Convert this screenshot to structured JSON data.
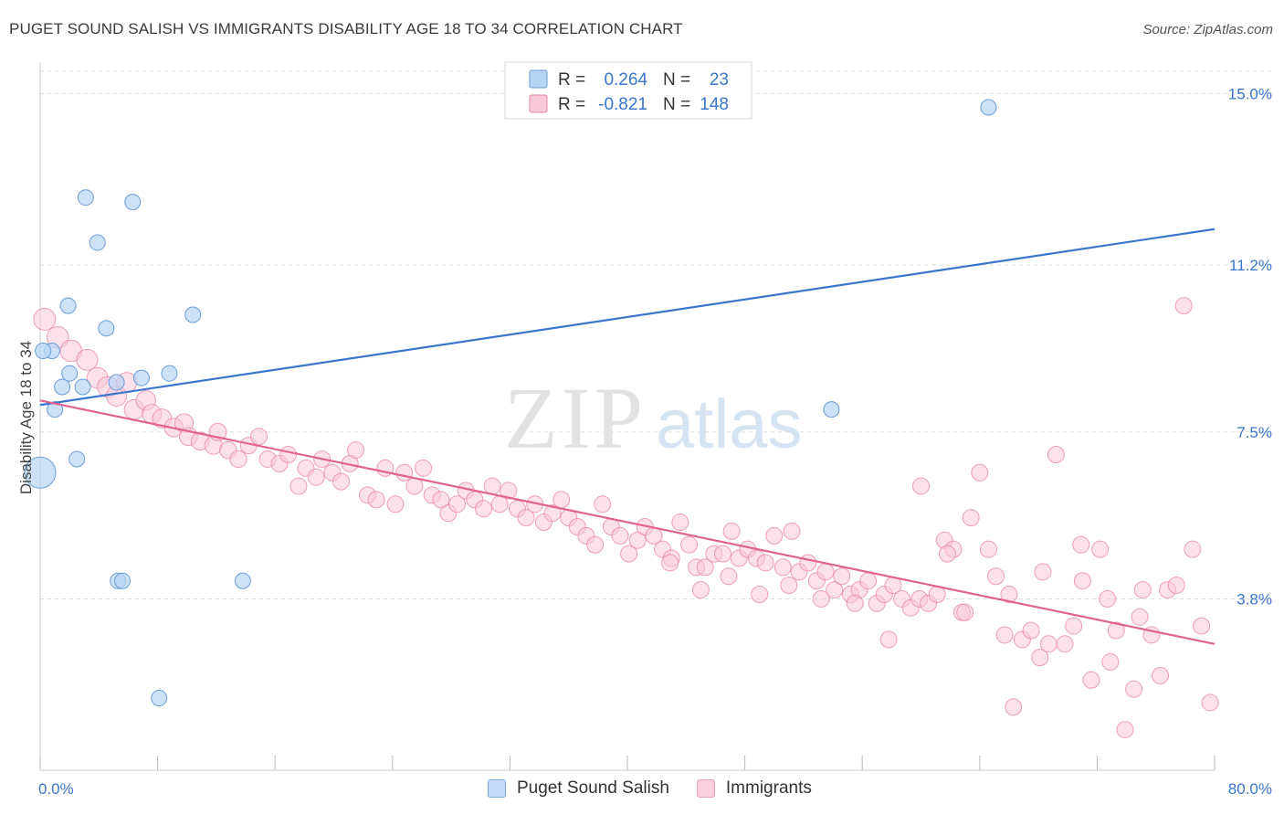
{
  "header": {
    "title": "PUGET SOUND SALISH VS IMMIGRANTS DISABILITY AGE 18 TO 34 CORRELATION CHART",
    "source": "Source: ZipAtlas.com"
  },
  "watermark": {
    "zip": "ZIP",
    "atlas": "atlas"
  },
  "legend_top": {
    "r_label": "R =",
    "n_label": "N =",
    "rows": [
      {
        "r": "0.264",
        "n": "23",
        "fill": "#b8d4f4",
        "stroke": "#6b9ed8"
      },
      {
        "r": "-0.821",
        "n": "148",
        "fill": "#f9c8d8",
        "stroke": "#e888a8"
      }
    ]
  },
  "legend_bottom": [
    {
      "label": "Puget Sound Salish",
      "fill": "#c6dcf6",
      "stroke": "#7aa8e0"
    },
    {
      "label": "Immigrants",
      "fill": "#fbd0de",
      "stroke": "#ee9cb8"
    }
  ],
  "colors": {
    "blue": "#3a76cc",
    "pink": "#e0638f",
    "axis_text": "#3a76cc",
    "grid": "#dddddd"
  },
  "chart_data": {
    "type": "scatter",
    "title": "PUGET SOUND SALISH VS IMMIGRANTS DISABILITY AGE 18 TO 34 CORRELATION CHART",
    "xlabel": "",
    "ylabel": "Disability Age 18 to 34",
    "xlim": [
      0,
      80
    ],
    "ylim": [
      0,
      15.5
    ],
    "x_tick_labels": [
      "0.0%",
      "80.0%"
    ],
    "y_ticks": [
      3.8,
      7.5,
      11.2,
      15.0
    ],
    "y_tick_labels": [
      "3.8%",
      "7.5%",
      "11.2%",
      "15.0%"
    ],
    "grid": true,
    "legend_position": "top-center",
    "series": [
      {
        "name": "Puget Sound Salish",
        "color": "#6b9ed8",
        "trend": {
          "x": [
            0,
            80
          ],
          "y": [
            8.1,
            12.0
          ]
        },
        "points": [
          [
            0.0,
            6.6
          ],
          [
            0.8,
            9.3
          ],
          [
            1.0,
            8.0
          ],
          [
            1.5,
            8.5
          ],
          [
            2.0,
            8.8
          ],
          [
            1.9,
            10.3
          ],
          [
            2.5,
            6.9
          ],
          [
            2.9,
            8.5
          ],
          [
            3.1,
            12.7
          ],
          [
            3.9,
            11.7
          ],
          [
            4.5,
            9.8
          ],
          [
            5.2,
            8.6
          ],
          [
            5.3,
            4.2
          ],
          [
            5.6,
            4.2
          ],
          [
            6.3,
            12.6
          ],
          [
            6.9,
            8.7
          ],
          [
            8.1,
            1.6
          ],
          [
            8.8,
            8.8
          ],
          [
            10.4,
            10.1
          ],
          [
            13.8,
            4.2
          ],
          [
            53.9,
            8.0
          ],
          [
            64.6,
            14.7
          ],
          [
            0.2,
            9.3
          ]
        ]
      },
      {
        "name": "Immigrants",
        "color": "#e888a8",
        "trend": {
          "x": [
            0,
            80
          ],
          "y": [
            8.2,
            2.8
          ]
        },
        "points": [
          [
            0.3,
            10.0
          ],
          [
            1.2,
            9.6
          ],
          [
            2.1,
            9.3
          ],
          [
            3.2,
            9.1
          ],
          [
            3.9,
            8.7
          ],
          [
            4.6,
            8.5
          ],
          [
            5.2,
            8.3
          ],
          [
            5.9,
            8.6
          ],
          [
            6.4,
            8.0
          ],
          [
            7.2,
            8.2
          ],
          [
            7.6,
            7.9
          ],
          [
            8.3,
            7.8
          ],
          [
            9.1,
            7.6
          ],
          [
            9.8,
            7.7
          ],
          [
            10.1,
            7.4
          ],
          [
            10.9,
            7.3
          ],
          [
            11.8,
            7.2
          ],
          [
            12.1,
            7.5
          ],
          [
            12.8,
            7.1
          ],
          [
            13.5,
            6.9
          ],
          [
            14.2,
            7.2
          ],
          [
            14.9,
            7.4
          ],
          [
            15.5,
            6.9
          ],
          [
            16.3,
            6.8
          ],
          [
            16.9,
            7.0
          ],
          [
            17.6,
            6.3
          ],
          [
            18.1,
            6.7
          ],
          [
            18.8,
            6.5
          ],
          [
            19.2,
            6.9
          ],
          [
            19.9,
            6.6
          ],
          [
            20.5,
            6.4
          ],
          [
            21.1,
            6.8
          ],
          [
            21.5,
            7.1
          ],
          [
            22.3,
            6.1
          ],
          [
            22.9,
            6.0
          ],
          [
            23.5,
            6.7
          ],
          [
            24.2,
            5.9
          ],
          [
            24.8,
            6.6
          ],
          [
            25.5,
            6.3
          ],
          [
            26.1,
            6.7
          ],
          [
            26.7,
            6.1
          ],
          [
            27.3,
            6.0
          ],
          [
            27.8,
            5.7
          ],
          [
            28.4,
            5.9
          ],
          [
            29.0,
            6.2
          ],
          [
            29.6,
            6.0
          ],
          [
            30.2,
            5.8
          ],
          [
            30.8,
            6.3
          ],
          [
            31.3,
            5.9
          ],
          [
            31.9,
            6.2
          ],
          [
            32.5,
            5.8
          ],
          [
            33.1,
            5.6
          ],
          [
            33.7,
            5.9
          ],
          [
            34.3,
            5.5
          ],
          [
            34.9,
            5.7
          ],
          [
            35.5,
            6.0
          ],
          [
            36.0,
            5.6
          ],
          [
            36.6,
            5.4
          ],
          [
            37.2,
            5.2
          ],
          [
            37.8,
            5.0
          ],
          [
            38.3,
            5.9
          ],
          [
            38.9,
            5.4
          ],
          [
            39.5,
            5.2
          ],
          [
            40.1,
            4.8
          ],
          [
            40.7,
            5.1
          ],
          [
            41.2,
            5.4
          ],
          [
            41.8,
            5.2
          ],
          [
            42.4,
            4.9
          ],
          [
            43.0,
            4.7
          ],
          [
            43.6,
            5.5
          ],
          [
            44.2,
            5.0
          ],
          [
            44.7,
            4.5
          ],
          [
            45.3,
            4.5
          ],
          [
            45.9,
            4.8
          ],
          [
            46.5,
            4.8
          ],
          [
            47.1,
            5.3
          ],
          [
            47.6,
            4.7
          ],
          [
            48.2,
            4.9
          ],
          [
            48.8,
            4.7
          ],
          [
            49.4,
            4.6
          ],
          [
            50.0,
            5.2
          ],
          [
            50.6,
            4.5
          ],
          [
            51.2,
            5.3
          ],
          [
            51.7,
            4.4
          ],
          [
            52.3,
            4.6
          ],
          [
            52.9,
            4.2
          ],
          [
            53.5,
            4.4
          ],
          [
            54.1,
            4.0
          ],
          [
            54.6,
            4.3
          ],
          [
            55.2,
            3.9
          ],
          [
            55.8,
            4.0
          ],
          [
            56.4,
            4.2
          ],
          [
            57.0,
            3.7
          ],
          [
            57.5,
            3.9
          ],
          [
            58.1,
            4.1
          ],
          [
            58.7,
            3.8
          ],
          [
            59.3,
            3.6
          ],
          [
            59.9,
            3.8
          ],
          [
            60.5,
            3.7
          ],
          [
            61.1,
            3.9
          ],
          [
            61.6,
            5.1
          ],
          [
            62.2,
            4.9
          ],
          [
            62.8,
            3.5
          ],
          [
            63.4,
            5.6
          ],
          [
            64.0,
            6.6
          ],
          [
            64.6,
            4.9
          ],
          [
            65.1,
            4.3
          ],
          [
            65.7,
            3.0
          ],
          [
            66.3,
            1.4
          ],
          [
            66.9,
            2.9
          ],
          [
            67.5,
            3.1
          ],
          [
            68.1,
            2.5
          ],
          [
            68.7,
            2.8
          ],
          [
            69.2,
            7.0
          ],
          [
            69.8,
            2.8
          ],
          [
            70.4,
            3.2
          ],
          [
            71.0,
            4.2
          ],
          [
            71.6,
            2.0
          ],
          [
            72.2,
            4.9
          ],
          [
            72.7,
            3.8
          ],
          [
            73.3,
            3.1
          ],
          [
            73.9,
            0.9
          ],
          [
            74.5,
            1.8
          ],
          [
            75.1,
            4.0
          ],
          [
            75.7,
            3.0
          ],
          [
            76.3,
            2.1
          ],
          [
            76.8,
            4.0
          ],
          [
            77.4,
            4.1
          ],
          [
            77.9,
            10.3
          ],
          [
            78.5,
            4.9
          ],
          [
            79.1,
            3.2
          ],
          [
            79.7,
            1.5
          ],
          [
            60.0,
            6.3
          ],
          [
            55.5,
            3.7
          ],
          [
            57.8,
            2.9
          ],
          [
            61.8,
            4.8
          ],
          [
            63.0,
            3.5
          ],
          [
            66.0,
            3.9
          ],
          [
            68.3,
            4.4
          ],
          [
            70.9,
            5.0
          ],
          [
            72.9,
            2.4
          ],
          [
            74.9,
            3.4
          ],
          [
            53.2,
            3.8
          ],
          [
            51.0,
            4.1
          ],
          [
            49.0,
            3.9
          ],
          [
            46.9,
            4.3
          ],
          [
            45.0,
            4.0
          ],
          [
            42.9,
            4.6
          ]
        ]
      }
    ]
  }
}
